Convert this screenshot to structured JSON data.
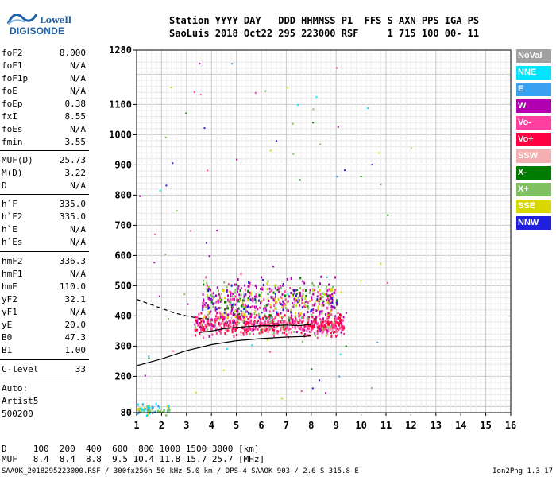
{
  "logo": {
    "line1": "Lowell",
    "line2": "DIGISONDE"
  },
  "header": {
    "line1": "Station YYYY DAY   DDD HHMMSS P1  FFS S AXN PPS IGA PS",
    "line2": "SaoLuis 2018 Oct22 295 223000 RSF     1 715 100 00- 11"
  },
  "params": [
    {
      "k": "foF2",
      "v": "8.000"
    },
    {
      "k": "foF1",
      "v": "N/A"
    },
    {
      "k": "foF1p",
      "v": "N/A"
    },
    {
      "k": "foE",
      "v": "N/A"
    },
    {
      "k": "foEp",
      "v": "0.38"
    },
    {
      "k": "fxI",
      "v": "8.55"
    },
    {
      "k": "foEs",
      "v": "N/A"
    },
    {
      "k": "fmin",
      "v": "3.55"
    },
    {
      "k": "MUF(D)",
      "v": "25.73"
    },
    {
      "k": "M(D)",
      "v": "3.22"
    },
    {
      "k": "D",
      "v": "N/A"
    },
    {
      "k": "h`F",
      "v": "335.0"
    },
    {
      "k": "h`F2",
      "v": "335.0"
    },
    {
      "k": "h`E",
      "v": "N/A"
    },
    {
      "k": "h`Es",
      "v": "N/A"
    },
    {
      "k": "hmF2",
      "v": "336.3"
    },
    {
      "k": "hmF1",
      "v": "N/A"
    },
    {
      "k": "hmE",
      "v": "110.0"
    },
    {
      "k": "yF2",
      "v": "32.1"
    },
    {
      "k": "yF1",
      "v": "N/A"
    },
    {
      "k": "yE",
      "v": "20.0"
    },
    {
      "k": "B0",
      "v": "47.3"
    },
    {
      "k": "B1",
      "v": "1.00"
    },
    {
      "k": "C-level",
      "v": "33"
    }
  ],
  "auto": {
    "line1": "Auto:",
    "line2": "Artist5",
    "line3": "500200"
  },
  "legend": [
    {
      "label": "NoVal",
      "color": "#a0a0a0"
    },
    {
      "label": "NNE",
      "color": "#00e5ff"
    },
    {
      "label": "E",
      "color": "#3aa0f0"
    },
    {
      "label": "W",
      "color": "#b000b0"
    },
    {
      "label": "Vo-",
      "color": "#ff40a0"
    },
    {
      "label": "Vo+",
      "color": "#ff0040"
    },
    {
      "label": "SSW",
      "color": "#f4b0b0"
    },
    {
      "label": "X-",
      "color": "#007a00"
    },
    {
      "label": "X+",
      "color": "#80c060"
    },
    {
      "label": "SSE",
      "color": "#d8d800"
    },
    {
      "label": "NNW",
      "color": "#2020e0"
    }
  ],
  "footer": {
    "line1": "D     100  200  400  600  800 1000 1500 3000 [km]",
    "line2": "MUF   8.4  8.4  8.8  9.5 10.4 11.8 15.7 25.7 [MHz]",
    "line3": "SAAOK_2018295223000.RSF / 300fx256h 50 kHz 5.0 km / DPS-4 SAAOK 903 / 2.6 S 315.8 E",
    "version": "Ion2Png 1.3.17"
  },
  "chart_data": {
    "type": "scatter",
    "xlim": [
      1,
      16
    ],
    "ylim": [
      80,
      1280
    ],
    "x_ticks": [
      "1",
      "2",
      "3",
      "4",
      "5",
      "6",
      "7",
      "8",
      "9",
      "10",
      "11",
      "12",
      "13",
      "14",
      "15",
      "16"
    ],
    "y_ticks": [
      "80",
      "200",
      "300",
      "400",
      "500",
      "600",
      "700",
      "800",
      "900",
      "1000",
      "1100",
      "1280"
    ],
    "grid": true,
    "legend_position": "right",
    "echo_regions": [
      {
        "name": "F-trace",
        "x_range": [
          3.3,
          9.3
        ],
        "y_center": 375,
        "y_spread": 25,
        "color_weights": {
          "#ff0040": 4,
          "#ff40a0": 4,
          "#b000b0": 1,
          "#f4b0b0": 1,
          "#80c060": 1
        }
      },
      {
        "name": "spread-F",
        "x_range": [
          3.6,
          9.0
        ],
        "y_center": 455,
        "y_spread": 45,
        "color_weights": {
          "#b000b0": 4,
          "#d8d800": 2,
          "#80c060": 2,
          "#ff40a0": 2,
          "#2020e0": 1,
          "#007a00": 1
        }
      },
      {
        "name": "low-freq",
        "x_range": [
          1.0,
          2.3
        ],
        "y_center": 92,
        "y_spread": 12,
        "color_weights": {
          "#00e5ff": 2,
          "#80c060": 2,
          "#d8d800": 1,
          "#3aa0f0": 1
        }
      }
    ],
    "profile_curve": {
      "x": [
        1.0,
        2.0,
        3.0,
        4.0,
        5.0,
        6.0,
        7.0,
        7.8,
        8.0
      ],
      "y": [
        235,
        258,
        285,
        305,
        318,
        325,
        330,
        332,
        335
      ]
    },
    "trace_curve": {
      "x": [
        3.5,
        4.0,
        4.5,
        5.0,
        5.5,
        6.0,
        6.5,
        7.0,
        7.5,
        8.0
      ],
      "y": [
        345,
        350,
        358,
        362,
        365,
        368,
        368,
        370,
        368,
        372
      ]
    },
    "dashed_curve": {
      "x": [
        1.0,
        1.5,
        2.0,
        2.5,
        3.0,
        3.5,
        4.0
      ],
      "y": [
        455,
        440,
        425,
        410,
        400,
        392,
        390
      ]
    }
  }
}
